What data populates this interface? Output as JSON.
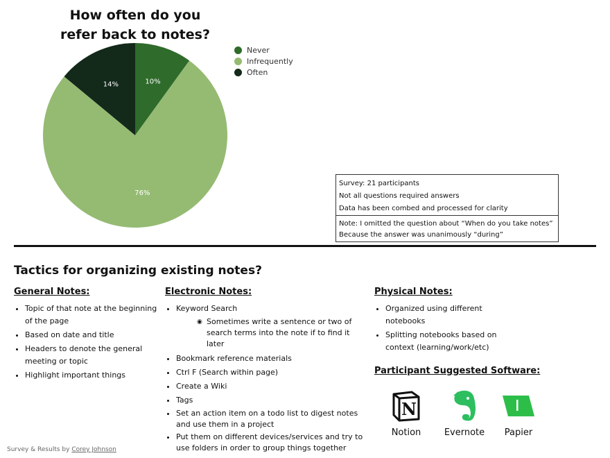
{
  "chart_data": {
    "type": "pie",
    "title": "How often do you refer back to notes?",
    "categories": [
      "Never",
      "Infrequently",
      "Often"
    ],
    "values": [
      10,
      76,
      14
    ],
    "labels": [
      "10%",
      "76%",
      "14%"
    ],
    "colors": [
      "#2f6b2b",
      "#95bb73",
      "#13291a"
    ],
    "legend_position": "right"
  },
  "survey_notes": {
    "line1": "Survey: 21 participants",
    "line2": "Not all questions required answers",
    "line3": "Data has been combed and processed for clarity",
    "note1": "Note: I omitted the question about “When do you take notes”",
    "note2": "Because the answer was unanimously “during”"
  },
  "tactics": {
    "title": "Tactics for organizing existing notes?",
    "general": {
      "heading": "General Notes:",
      "items": [
        "Topic of that note at the beginning of the page",
        "Based on date and title",
        "Headers to denote the general meeting or topic",
        "Highlight important things"
      ]
    },
    "electronic": {
      "heading": "Electronic Notes:",
      "item0": "Keyword Search",
      "sub0": "Sometimes write a sentence or two of search terms into the note if to find it later",
      "items": [
        "Bookmark reference materials",
        "Ctrl F (Search within page)",
        "Create a Wiki",
        "Tags",
        "Set an action item on a todo list to digest notes and use them in a project",
        "Put them on different devices/services and try to use folders in order to group things together"
      ]
    },
    "physical": {
      "heading": "Physical Notes:",
      "items": [
        "Organized using different notebooks",
        "Splitting notebooks based on context (learning/work/etc)"
      ]
    }
  },
  "software": {
    "heading": "Participant Suggested Software:",
    "apps": [
      {
        "name": "Notion",
        "icon": "notion-icon"
      },
      {
        "name": "Evernote",
        "icon": "evernote-icon"
      },
      {
        "name": "Papier",
        "icon": "papier-icon"
      }
    ]
  },
  "footer": {
    "prefix": "Survey & Results by",
    "author": "Corey Johnson"
  }
}
